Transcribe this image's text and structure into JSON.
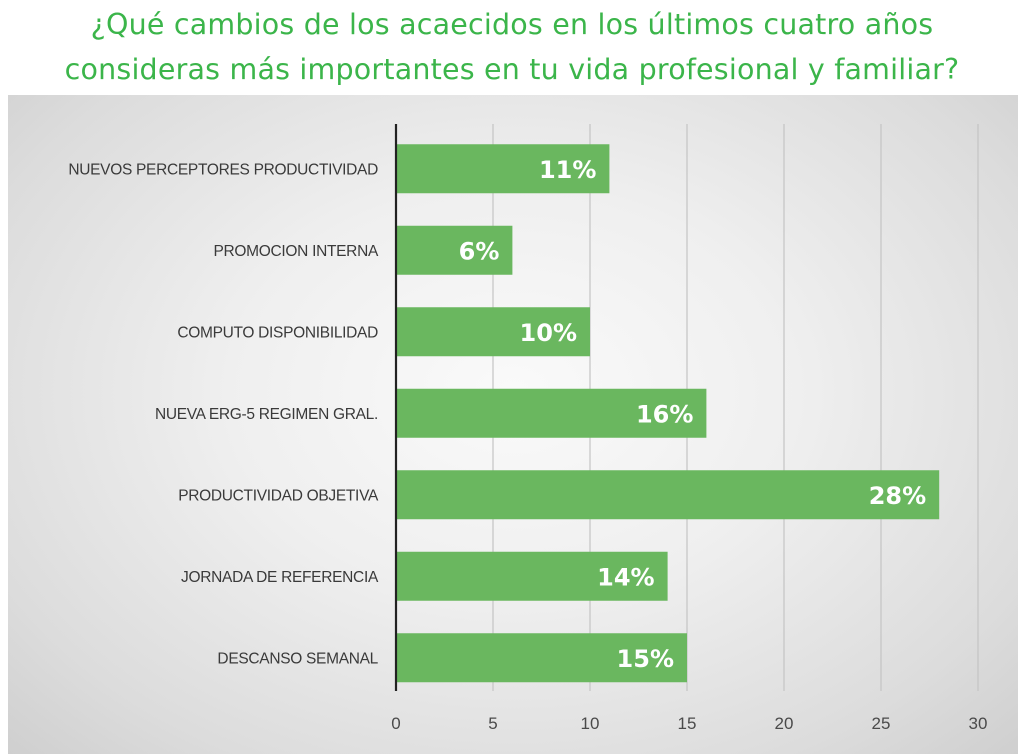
{
  "title_lines": [
    "¿Qué cambios de los acaecidos en los últimos cuatro años",
    "consideras más importantes en tu vida profesional y familiar?"
  ],
  "colors": {
    "title": "#3bb54a",
    "bar": "#6ab75f",
    "grid": "#c4c4c4",
    "axis": "#222222"
  },
  "chart_data": {
    "type": "bar",
    "orientation": "horizontal",
    "title": "¿Qué cambios de los acaecidos en los últimos cuatro años consideras más importantes en tu vida profesional y familiar?",
    "categories": [
      "NUEVOS PERCEPTORES PRODUCTIVIDAD",
      "PROMOCION INTERNA",
      "COMPUTO DISPONIBILIDAD",
      "NUEVA ERG-5 REGIMEN GRAL.",
      "PRODUCTIVIDAD OBJETIVA",
      "JORNADA DE REFERENCIA",
      "DESCANSO SEMANAL"
    ],
    "values": [
      11,
      6,
      10,
      16,
      28,
      14,
      15
    ],
    "data_labels": [
      "11%",
      "6%",
      "10%",
      "16%",
      "28%",
      "14%",
      "15%"
    ],
    "xlim": [
      0,
      30
    ],
    "xticks": [
      0,
      5,
      10,
      15,
      20,
      25,
      30
    ],
    "tick_labels": [
      "0",
      "5",
      "10",
      "15",
      "20",
      "25",
      "30"
    ],
    "xlabel": "",
    "ylabel": "",
    "grid": "vertical",
    "legend": "none"
  }
}
